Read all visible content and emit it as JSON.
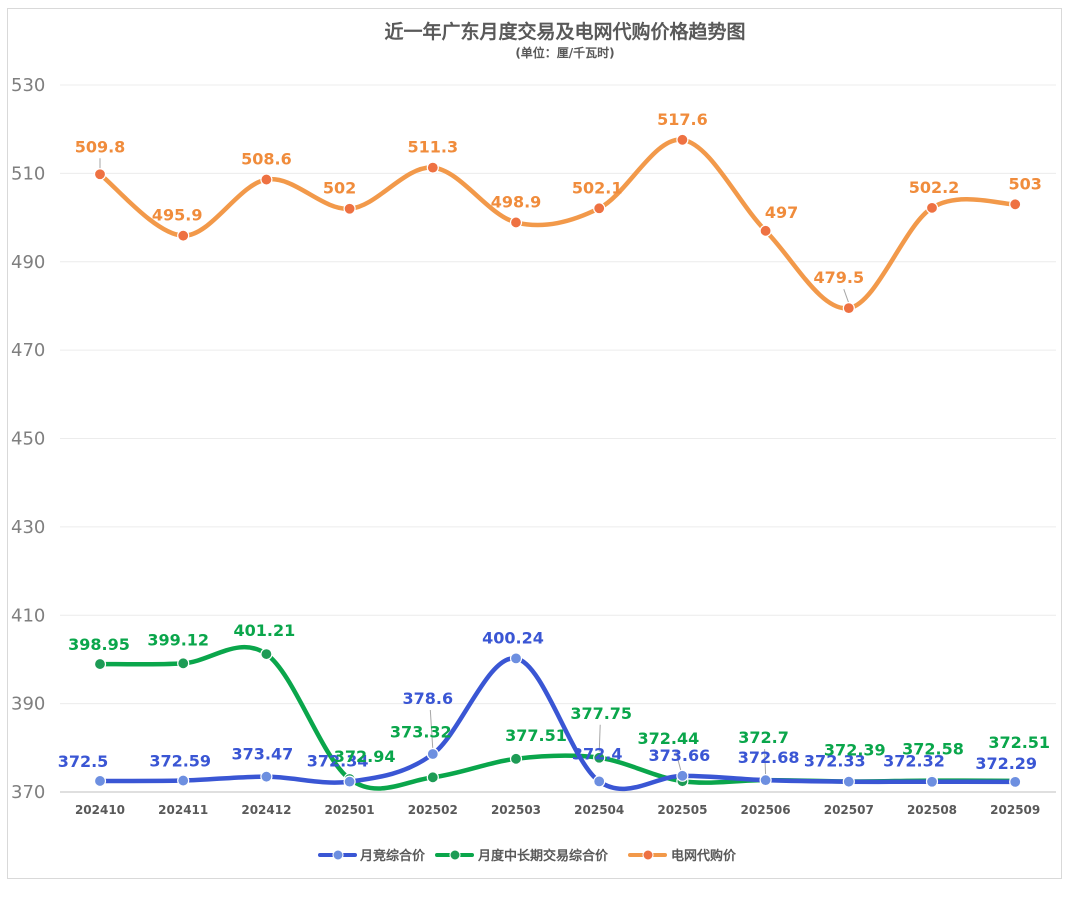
{
  "chart_data": {
    "type": "line",
    "title": "近一年广东月度交易及电网代购价格趋势图",
    "subtitle": "(单位：厘/千瓦时)",
    "categories": [
      "202410",
      "202411",
      "202412",
      "202501",
      "202502",
      "202503",
      "202504",
      "202505",
      "202506",
      "202507",
      "202508",
      "202509"
    ],
    "ylim": [
      370,
      530
    ],
    "yticks": [
      370,
      390,
      410,
      430,
      450,
      470,
      490,
      510,
      530
    ],
    "grid": true,
    "legend_position": "bottom",
    "series": [
      {
        "name": "月竞综合价",
        "color": "#3a56d4",
        "marker": "#6d8fe0",
        "values": [
          372.5,
          372.59,
          373.47,
          372.34,
          378.6,
          400.24,
          372.4,
          373.66,
          372.68,
          372.33,
          372.32,
          372.29
        ],
        "labels": [
          "372.5",
          "372.59",
          "373.47",
          "372.34",
          "378.6",
          "400.24",
          "372.4",
          "373.66",
          "372.68",
          "372.33",
          "372.32",
          "372.29"
        ]
      },
      {
        "name": "月度中长期交易综合价",
        "color": "#0aa64b",
        "marker": "#1d9b55",
        "values": [
          398.95,
          399.12,
          401.21,
          372.94,
          373.32,
          377.51,
          377.75,
          372.44,
          372.7,
          372.39,
          372.58,
          372.51
        ],
        "labels": [
          "398.95",
          "399.12",
          "401.21",
          "372.94",
          "373.32",
          "377.51",
          "377.75",
          "372.44",
          "372.7",
          "372.39",
          "372.58",
          "372.51"
        ]
      },
      {
        "name": "电网代购价",
        "color": "#f2994a",
        "marker": "#ee7142",
        "values": [
          509.8,
          495.9,
          508.6,
          502,
          511.3,
          498.9,
          502.1,
          517.6,
          497,
          479.5,
          502.2,
          503
        ],
        "labels": [
          "509.8",
          "495.9",
          "508.6",
          "502",
          "511.3",
          "498.9",
          "502.1",
          "517.6",
          "497",
          "479.5",
          "502.2",
          "503"
        ]
      }
    ]
  }
}
